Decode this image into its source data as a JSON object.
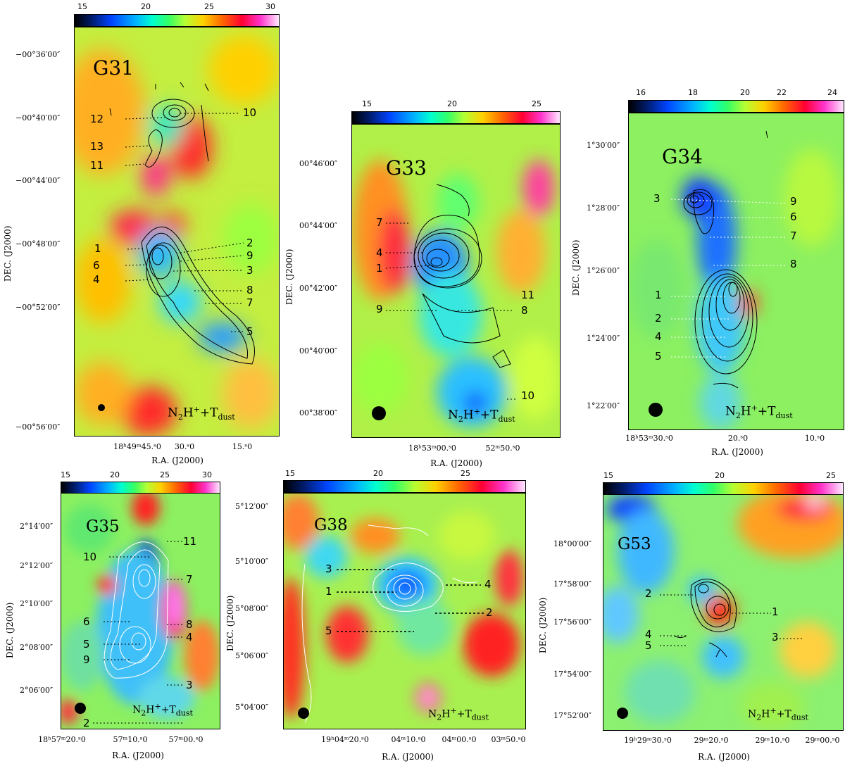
{
  "legend_text": {
    "species": "N",
    "sub1": "2",
    "H": "H",
    "sup": "+",
    "plus": "+T",
    "sub2": "dust"
  },
  "axis_labels": {
    "ra": "R.A. (J2000)",
    "dec": "DEC. (J2000)"
  },
  "panels": [
    {
      "id": "G31",
      "name": "G31",
      "colorbar": [
        "15",
        "20",
        "25",
        "30"
      ],
      "dec_ticks": [
        "−00°36′00″",
        "−00°40′00″",
        "−00°44′00″",
        "−00°48′00″",
        "−00°52′00″",
        "−00°56′00″"
      ],
      "ra_ticks": [
        "18ʰ49ᵐ45.ˢ0",
        "30.ˢ0",
        "15.ˢ0"
      ],
      "core_labels": [
        "12",
        "13",
        "11",
        "1",
        "6",
        "4",
        "10",
        "2",
        "9",
        "3",
        "8",
        "7",
        "5"
      ]
    },
    {
      "id": "G33",
      "name": "G33",
      "colorbar": [
        "15",
        "20",
        "25"
      ],
      "dec_ticks": [
        "00°46′00″",
        "00°44′00″",
        "00°42′00″",
        "00°40′00″",
        "00°38′00″"
      ],
      "ra_ticks": [
        "18ʰ53ᵐ00.ˢ0",
        "52ᵐ50.ˢ0"
      ],
      "core_labels": [
        "7",
        "4",
        "1",
        "9",
        "11",
        "8",
        "10"
      ]
    },
    {
      "id": "G34",
      "name": "G34",
      "colorbar": [
        "16",
        "18",
        "20",
        "22",
        "24"
      ],
      "dec_ticks": [
        "1°30′00″",
        "1°28′00″",
        "1°26′00″",
        "1°24′00″",
        "1°22′00″"
      ],
      "ra_ticks": [
        "18ʰ53ᵐ30.ˢ0",
        "20.ˢ0",
        "10.ˢ0"
      ],
      "core_labels": [
        "3",
        "1",
        "2",
        "4",
        "5",
        "9",
        "6",
        "7",
        "8"
      ]
    },
    {
      "id": "G35",
      "name": "G35",
      "colorbar": [
        "15",
        "20",
        "25",
        "30"
      ],
      "dec_ticks": [
        "2°14′00″",
        "2°12′00″",
        "2°10′00″",
        "2°08′00″",
        "2°06′00″"
      ],
      "ra_ticks": [
        "18ʰ57ᵐ20.ˢ0",
        "57ᵐ10.ˢ0",
        "57ᵐ00.ˢ0"
      ],
      "core_labels": [
        "10",
        "6",
        "5",
        "9",
        "11",
        "7",
        "8",
        "4",
        "3",
        "2"
      ]
    },
    {
      "id": "G38",
      "name": "G38",
      "colorbar": [
        "15",
        "20",
        "25"
      ],
      "dec_ticks": [
        "5°12′00″",
        "5°10′00″",
        "5°08′00″",
        "5°06′00″",
        "5°04′00″"
      ],
      "ra_ticks": [
        "19ʰ04ᵐ20.ˢ0",
        "04ᵐ10.ˢ0",
        "04ᵐ00.ˢ0",
        "03ᵐ50.ˢ0"
      ],
      "core_labels": [
        "3",
        "1",
        "5",
        "4",
        "2"
      ]
    },
    {
      "id": "G53",
      "name": "G53",
      "colorbar": [
        "15",
        "20",
        "25"
      ],
      "dec_ticks": [
        "18°00′00″",
        "17°58′00″",
        "17°56′00″",
        "17°54′00″",
        "17°52′00″"
      ],
      "ra_ticks": [
        "19ʰ29ᵐ30.ˢ0",
        "29ᵐ20.ˢ0",
        "29ᵐ10.ˢ0",
        "29ᵐ00.ˢ0"
      ],
      "core_labels": [
        "2",
        "4",
        "5",
        "1",
        "3"
      ]
    }
  ]
}
